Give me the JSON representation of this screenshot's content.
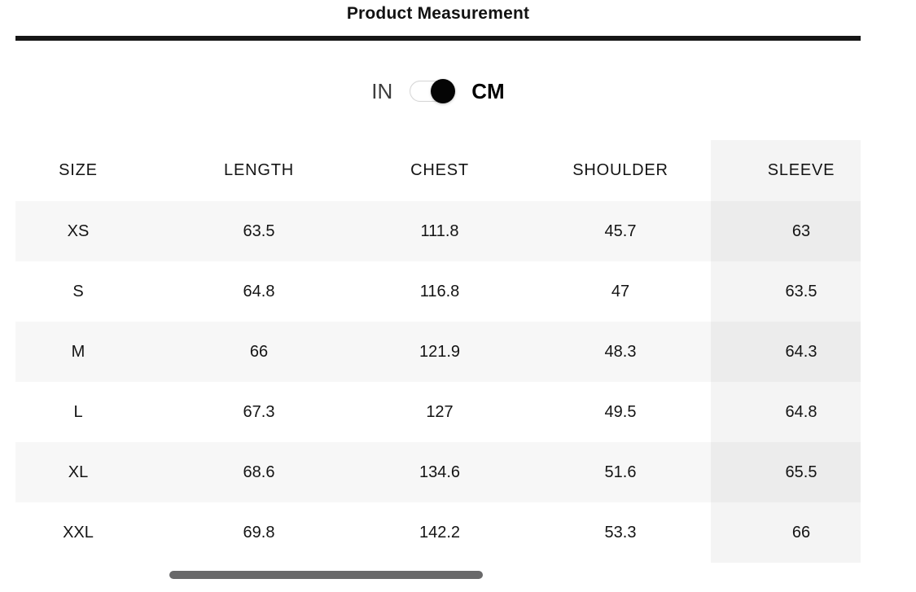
{
  "page": {
    "title": "Product Measurement"
  },
  "unit_toggle": {
    "left_label": "IN",
    "right_label": "CM",
    "selected": "CM"
  },
  "table": {
    "columns": [
      "SIZE",
      "LENGTH",
      "CHEST",
      "SHOULDER",
      "SLEEVE"
    ],
    "highlighted_column": "SLEEVE",
    "rows": [
      {
        "cells": [
          "XS",
          "63.5",
          "111.8",
          "45.7",
          "63"
        ]
      },
      {
        "cells": [
          "S",
          "64.8",
          "116.8",
          "47",
          "63.5"
        ]
      },
      {
        "cells": [
          "M",
          "66",
          "121.9",
          "48.3",
          "64.3"
        ]
      },
      {
        "cells": [
          "L",
          "67.3",
          "127",
          "49.5",
          "64.8"
        ]
      },
      {
        "cells": [
          "XL",
          "68.6",
          "134.6",
          "51.6",
          "65.5"
        ]
      },
      {
        "cells": [
          "XXL",
          "69.8",
          "142.2",
          "53.3",
          "66"
        ]
      }
    ]
  },
  "scrollbar": {
    "orientation": "horizontal"
  },
  "colors": {
    "row_stripe": "#f7f7f7",
    "column_highlight": "#f2f2f2",
    "divider": "#161616",
    "scrollbar_thumb": "#69696a",
    "toggle_knob": "#000000",
    "toggle_border": "#d6d6d6"
  }
}
